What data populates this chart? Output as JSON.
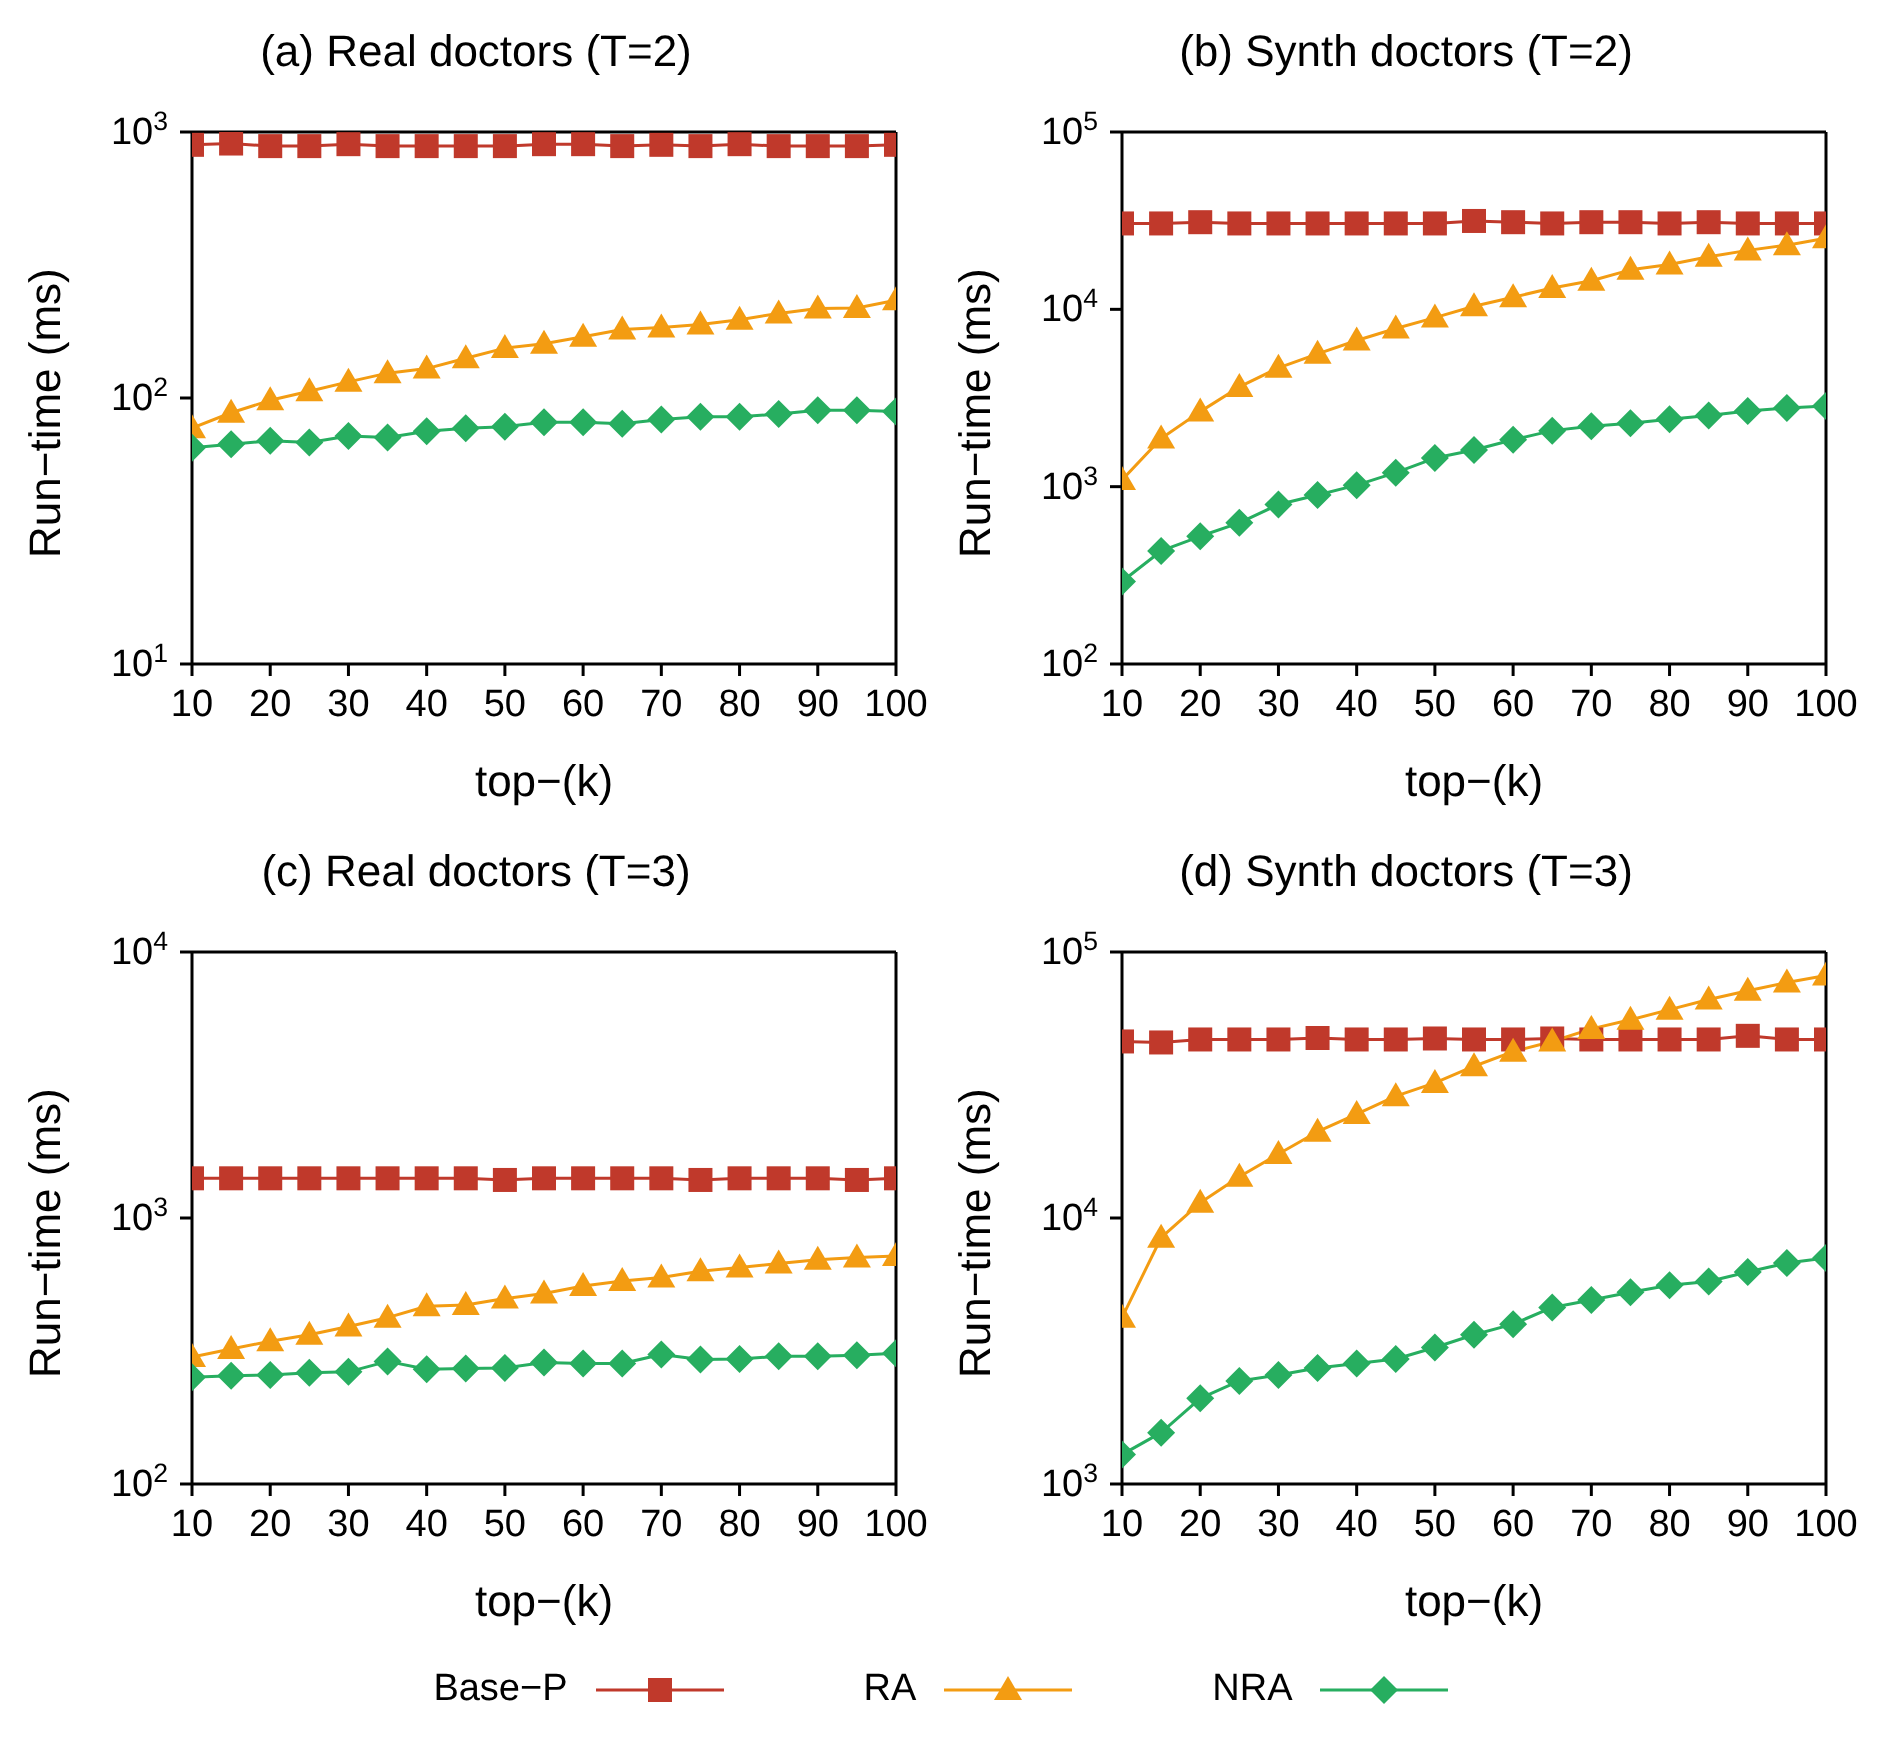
{
  "chart_data": [
    {
      "type": "line",
      "title": "(a) Real doctors (T=2)",
      "xlabel": "top−(k)",
      "ylabel": "Run−time (ms)",
      "log": "y",
      "grid": false,
      "legend": "bottom",
      "x": [
        10,
        15,
        20,
        25,
        30,
        35,
        40,
        45,
        50,
        55,
        60,
        65,
        70,
        75,
        80,
        85,
        90,
        95,
        100
      ],
      "xlim": [
        10,
        100
      ],
      "xticks": [
        10,
        20,
        30,
        40,
        50,
        60,
        70,
        80,
        90,
        100
      ],
      "ylim": [
        10,
        1000
      ],
      "yticks": [
        {
          "value": 10,
          "label": "10$^{1}$"
        },
        {
          "value": 100,
          "label": "10$^{2}$"
        },
        {
          "value": 1000,
          "label": "10$^{3}$"
        }
      ],
      "series": [
        {
          "name": "Base−P",
          "color": "#c0392b",
          "marker": "square",
          "values": [
            895,
            905,
            885,
            885,
            900,
            885,
            885,
            885,
            885,
            900,
            900,
            885,
            895,
            885,
            900,
            885,
            885,
            885,
            895
          ]
        },
        {
          "name": "RA",
          "color": "#f39c12",
          "marker": "triangle",
          "values": [
            77,
            88,
            98,
            106,
            115,
            124,
            129,
            141,
            154,
            160,
            170,
            181,
            184,
            189,
            197,
            208,
            217,
            218,
            233
          ]
        },
        {
          "name": "NRA",
          "color": "#27ae60",
          "marker": "diamond",
          "values": [
            65,
            67,
            69,
            68,
            72,
            71,
            75,
            77,
            78,
            81,
            81,
            80,
            83,
            85,
            85,
            87,
            90,
            90,
            89
          ]
        }
      ]
    },
    {
      "type": "line",
      "title": "(b) Synth doctors (T=2)",
      "xlabel": "top−(k)",
      "ylabel": "Run−time (ms)",
      "log": "y",
      "grid": false,
      "x": [
        10,
        15,
        20,
        25,
        30,
        35,
        40,
        45,
        50,
        55,
        60,
        65,
        70,
        75,
        80,
        85,
        90,
        95,
        100
      ],
      "xlim": [
        10,
        100
      ],
      "xticks": [
        10,
        20,
        30,
        40,
        50,
        60,
        70,
        80,
        90,
        100
      ],
      "ylim": [
        100,
        100000
      ],
      "yticks": [
        {
          "value": 100,
          "label": "10$^{2}$"
        },
        {
          "value": 1000,
          "label": "10$^{3}$"
        },
        {
          "value": 10000,
          "label": "10$^{4}$"
        },
        {
          "value": 100000,
          "label": "10$^{5}$"
        }
      ],
      "series": [
        {
          "color": "#c0392b",
          "marker": "square",
          "values": [
            30500,
            30500,
            31000,
            30500,
            30500,
            30500,
            30500,
            30500,
            30500,
            31500,
            31000,
            30500,
            31000,
            31000,
            30500,
            31000,
            30500,
            30500,
            30500
          ]
        },
        {
          "color": "#f39c12",
          "marker": "triangle",
          "values": [
            1090,
            1870,
            2650,
            3650,
            4680,
            5610,
            6670,
            7800,
            8980,
            10400,
            11700,
            13200,
            14500,
            16700,
            17900,
            19800,
            21500,
            23000,
            25200
          ]
        },
        {
          "color": "#27ae60",
          "marker": "diamond",
          "values": [
            292,
            434,
            525,
            625,
            794,
            898,
            1020,
            1200,
            1450,
            1610,
            1840,
            2070,
            2190,
            2280,
            2400,
            2520,
            2670,
            2780,
            2850
          ]
        }
      ]
    },
    {
      "type": "line",
      "title": "(c) Real doctors (T=3)",
      "xlabel": "top−(k)",
      "ylabel": "Run−time (ms)",
      "log": "y",
      "grid": false,
      "x": [
        10,
        15,
        20,
        25,
        30,
        35,
        40,
        45,
        50,
        55,
        60,
        65,
        70,
        75,
        80,
        85,
        90,
        95,
        100
      ],
      "xlim": [
        10,
        100
      ],
      "xticks": [
        10,
        20,
        30,
        40,
        50,
        60,
        70,
        80,
        90,
        100
      ],
      "ylim": [
        100,
        10000
      ],
      "yticks": [
        {
          "value": 100,
          "label": "10$^{2}$"
        },
        {
          "value": 1000,
          "label": "10$^{3}$"
        },
        {
          "value": 10000,
          "label": "10$^{4}$"
        }
      ],
      "series": [
        {
          "color": "#c0392b",
          "marker": "square",
          "values": [
            1410,
            1410,
            1410,
            1410,
            1410,
            1410,
            1410,
            1410,
            1390,
            1410,
            1410,
            1410,
            1410,
            1390,
            1410,
            1410,
            1410,
            1390,
            1410
          ]
        },
        {
          "color": "#f39c12",
          "marker": "triangle",
          "values": [
            300,
            322,
            344,
            364,
            391,
            422,
            466,
            471,
            498,
            520,
            555,
            580,
            597,
            631,
            652,
            674,
            696,
            711,
            719
          ]
        },
        {
          "color": "#27ae60",
          "marker": "diamond",
          "values": [
            252,
            255,
            257,
            262,
            264,
            289,
            270,
            272,
            273,
            286,
            284,
            284,
            307,
            294,
            295,
            302,
            302,
            305,
            310
          ]
        }
      ]
    },
    {
      "type": "line",
      "title": "(d) Synth doctors (T=3)",
      "xlabel": "top−(k)",
      "ylabel": "Run−time (ms)",
      "log": "y",
      "grid": false,
      "x": [
        10,
        15,
        20,
        25,
        30,
        35,
        40,
        45,
        50,
        55,
        60,
        65,
        70,
        75,
        80,
        85,
        90,
        95,
        100
      ],
      "xlim": [
        10,
        100
      ],
      "xticks": [
        10,
        20,
        30,
        40,
        50,
        60,
        70,
        80,
        90,
        100
      ],
      "ylim": [
        1000,
        100000
      ],
      "yticks": [
        {
          "value": 1000,
          "label": "10$^{3}$"
        },
        {
          "value": 10000,
          "label": "10$^{4}$"
        },
        {
          "value": 100000,
          "label": "10$^{5}$"
        }
      ],
      "series": [
        {
          "color": "#c0392b",
          "marker": "square",
          "values": [
            46100,
            45700,
            46900,
            46900,
            46900,
            47500,
            46900,
            46900,
            47300,
            46900,
            46900,
            47300,
            46900,
            46900,
            46900,
            46900,
            48400,
            46900,
            46900
          ]
        },
        {
          "color": "#f39c12",
          "marker": "triangle",
          "values": [
            4220,
            8430,
            11400,
            14300,
            17400,
            21100,
            24600,
            28700,
            32200,
            37200,
            42200,
            46100,
            51400,
            55600,
            60700,
            66300,
            71500,
            76800,
            81600
          ]
        },
        {
          "color": "#27ae60",
          "marker": "diamond",
          "values": [
            1290,
            1560,
            2100,
            2440,
            2570,
            2730,
            2840,
            2950,
            3260,
            3640,
            3990,
            4610,
            4920,
            5260,
            5590,
            5770,
            6270,
            6770,
            7080
          ]
        }
      ]
    }
  ]
}
